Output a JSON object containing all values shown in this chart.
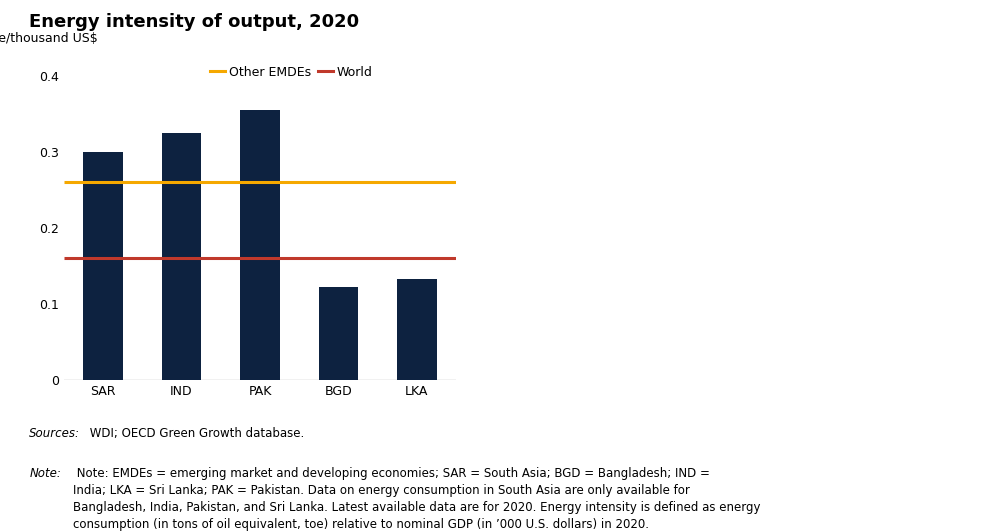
{
  "title": "Energy intensity of output, 2020",
  "ylabel": "Toe/thousand US$",
  "categories": [
    "SAR",
    "IND",
    "PAK",
    "BGD",
    "LKA"
  ],
  "values": [
    0.3,
    0.325,
    0.355,
    0.122,
    0.133
  ],
  "bar_color": "#0d2240",
  "other_emdes_value": 0.26,
  "world_value": 0.16,
  "other_emdes_color": "#f5a800",
  "world_color": "#c0392b",
  "other_emdes_label": "Other EMDEs",
  "world_label": "World",
  "ylim": [
    0,
    0.42
  ],
  "yticks": [
    0,
    0.1,
    0.2,
    0.3,
    0.4
  ],
  "background_color": "#ffffff",
  "title_fontsize": 13,
  "axis_label_fontsize": 9,
  "tick_fontsize": 9,
  "legend_fontsize": 9,
  "note_fontsize": 8.5,
  "bar_width": 0.5,
  "sources_italic": "Sources:",
  "sources_rest": " WDI; OECD Green Growth database.",
  "note_italic": "Note:",
  "note_rest": " Note: EMDEs = emerging market and developing economies; SAR = South Asia; BGD = Bangladesh; IND =\nIndia; LKA = Sri Lanka; PAK = Pakistan. Data on energy consumption in South Asia are only available for\nBangladesh, India, Pakistan, and Sri Lanka. Latest available data are for 2020. Energy intensity is defined as energy\nconsumption (in tons of oil equivalent, toe) relative to nominal GDP (in ’000 U.S. dollars) in 2020."
}
